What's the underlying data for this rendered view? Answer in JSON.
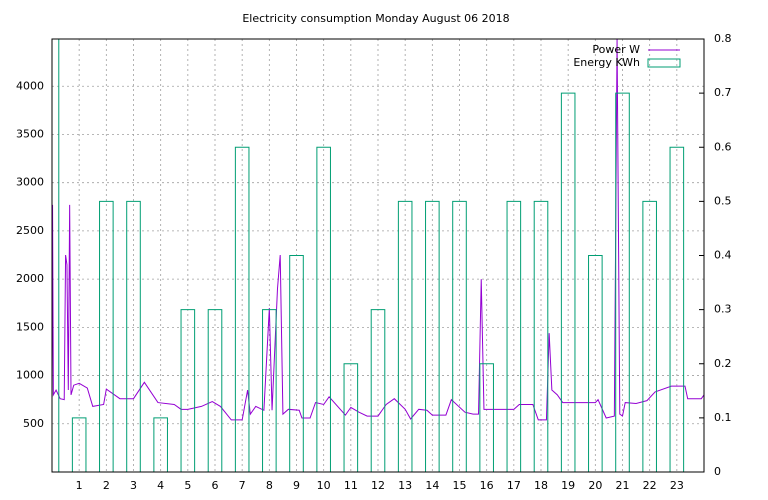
{
  "chart_data": {
    "type": "line",
    "title": "Electricity consumption Monday August 06 2018",
    "xlim": [
      0,
      24
    ],
    "xticks": [
      1,
      2,
      3,
      4,
      5,
      6,
      7,
      8,
      9,
      10,
      11,
      12,
      13,
      14,
      15,
      16,
      17,
      18,
      19,
      20,
      21,
      22,
      23
    ],
    "ylim": [
      0,
      4490
    ],
    "yticks": [
      500,
      1000,
      1500,
      2000,
      2500,
      3000,
      3500,
      4000
    ],
    "y2lim": [
      0,
      0.8
    ],
    "y2ticks": [
      0,
      0.1,
      0.2,
      0.3,
      0.4,
      0.5,
      0.6,
      0.7,
      0.8
    ],
    "grid": true,
    "legend": "top-right",
    "series": [
      {
        "name": "Power W",
        "color": "#9400d3",
        "type": "line",
        "x": [
          0,
          0.02,
          0.05,
          0.15,
          0.3,
          0.45,
          0.5,
          0.55,
          0.6,
          0.65,
          0.7,
          0.8,
          1.0,
          1.3,
          1.5,
          1.9,
          2.0,
          2.5,
          3.0,
          3.4,
          3.9,
          4.5,
          4.75,
          5.0,
          5.5,
          5.9,
          6.2,
          6.6,
          7.0,
          7.2,
          7.3,
          7.5,
          7.8,
          8.0,
          8.1,
          8.3,
          8.4,
          8.5,
          8.7,
          9.1,
          9.2,
          9.5,
          9.7,
          10.0,
          10.2,
          10.8,
          11.0,
          11.3,
          11.6,
          12.0,
          12.3,
          12.6,
          13.0,
          13.2,
          13.5,
          13.8,
          14.0,
          14.5,
          14.7,
          15.2,
          15.5,
          15.7,
          15.8,
          15.9,
          16.3,
          17.0,
          17.2,
          17.7,
          17.9,
          18.2,
          18.3,
          18.4,
          18.6,
          18.8,
          19.5,
          20.0,
          20.1,
          20.4,
          20.7,
          20.8,
          20.9,
          21.0,
          21.1,
          21.5,
          21.9,
          22.2,
          22.8,
          23.3,
          23.4,
          23.9,
          24
        ],
        "values": [
          750,
          2770,
          800,
          850,
          760,
          750,
          2250,
          2150,
          850,
          2770,
          800,
          900,
          920,
          870,
          680,
          700,
          860,
          760,
          760,
          930,
          720,
          700,
          650,
          650,
          680,
          730,
          680,
          540,
          540,
          850,
          600,
          680,
          640,
          1700,
          640,
          1900,
          2250,
          600,
          650,
          640,
          560,
          560,
          720,
          700,
          780,
          590,
          670,
          620,
          580,
          580,
          700,
          760,
          650,
          550,
          650,
          640,
          590,
          590,
          750,
          620,
          600,
          600,
          2000,
          650,
          650,
          650,
          700,
          700,
          540,
          540,
          1440,
          850,
          800,
          720,
          720,
          720,
          750,
          560,
          580,
          4490,
          600,
          580,
          720,
          710,
          740,
          830,
          890,
          890,
          760,
          760,
          800
        ]
      },
      {
        "name": "Energy KWh",
        "color": "#009e73",
        "type": "boxes",
        "axis": "y2",
        "x": [
          0,
          1,
          2,
          3,
          4,
          5,
          6,
          7,
          8,
          9,
          10,
          11,
          12,
          13,
          14,
          15,
          16,
          17,
          18,
          19,
          20,
          21,
          22,
          23
        ],
        "values": [
          0.8,
          0.1,
          0.5,
          0.5,
          0.1,
          0.3,
          0.3,
          0.6,
          0.3,
          0.4,
          0.6,
          0.2,
          0.3,
          0.5,
          0.5,
          0.5,
          0.2,
          0.5,
          0.5,
          0.7,
          0.4,
          0.7,
          0.5,
          0.6
        ]
      }
    ]
  }
}
